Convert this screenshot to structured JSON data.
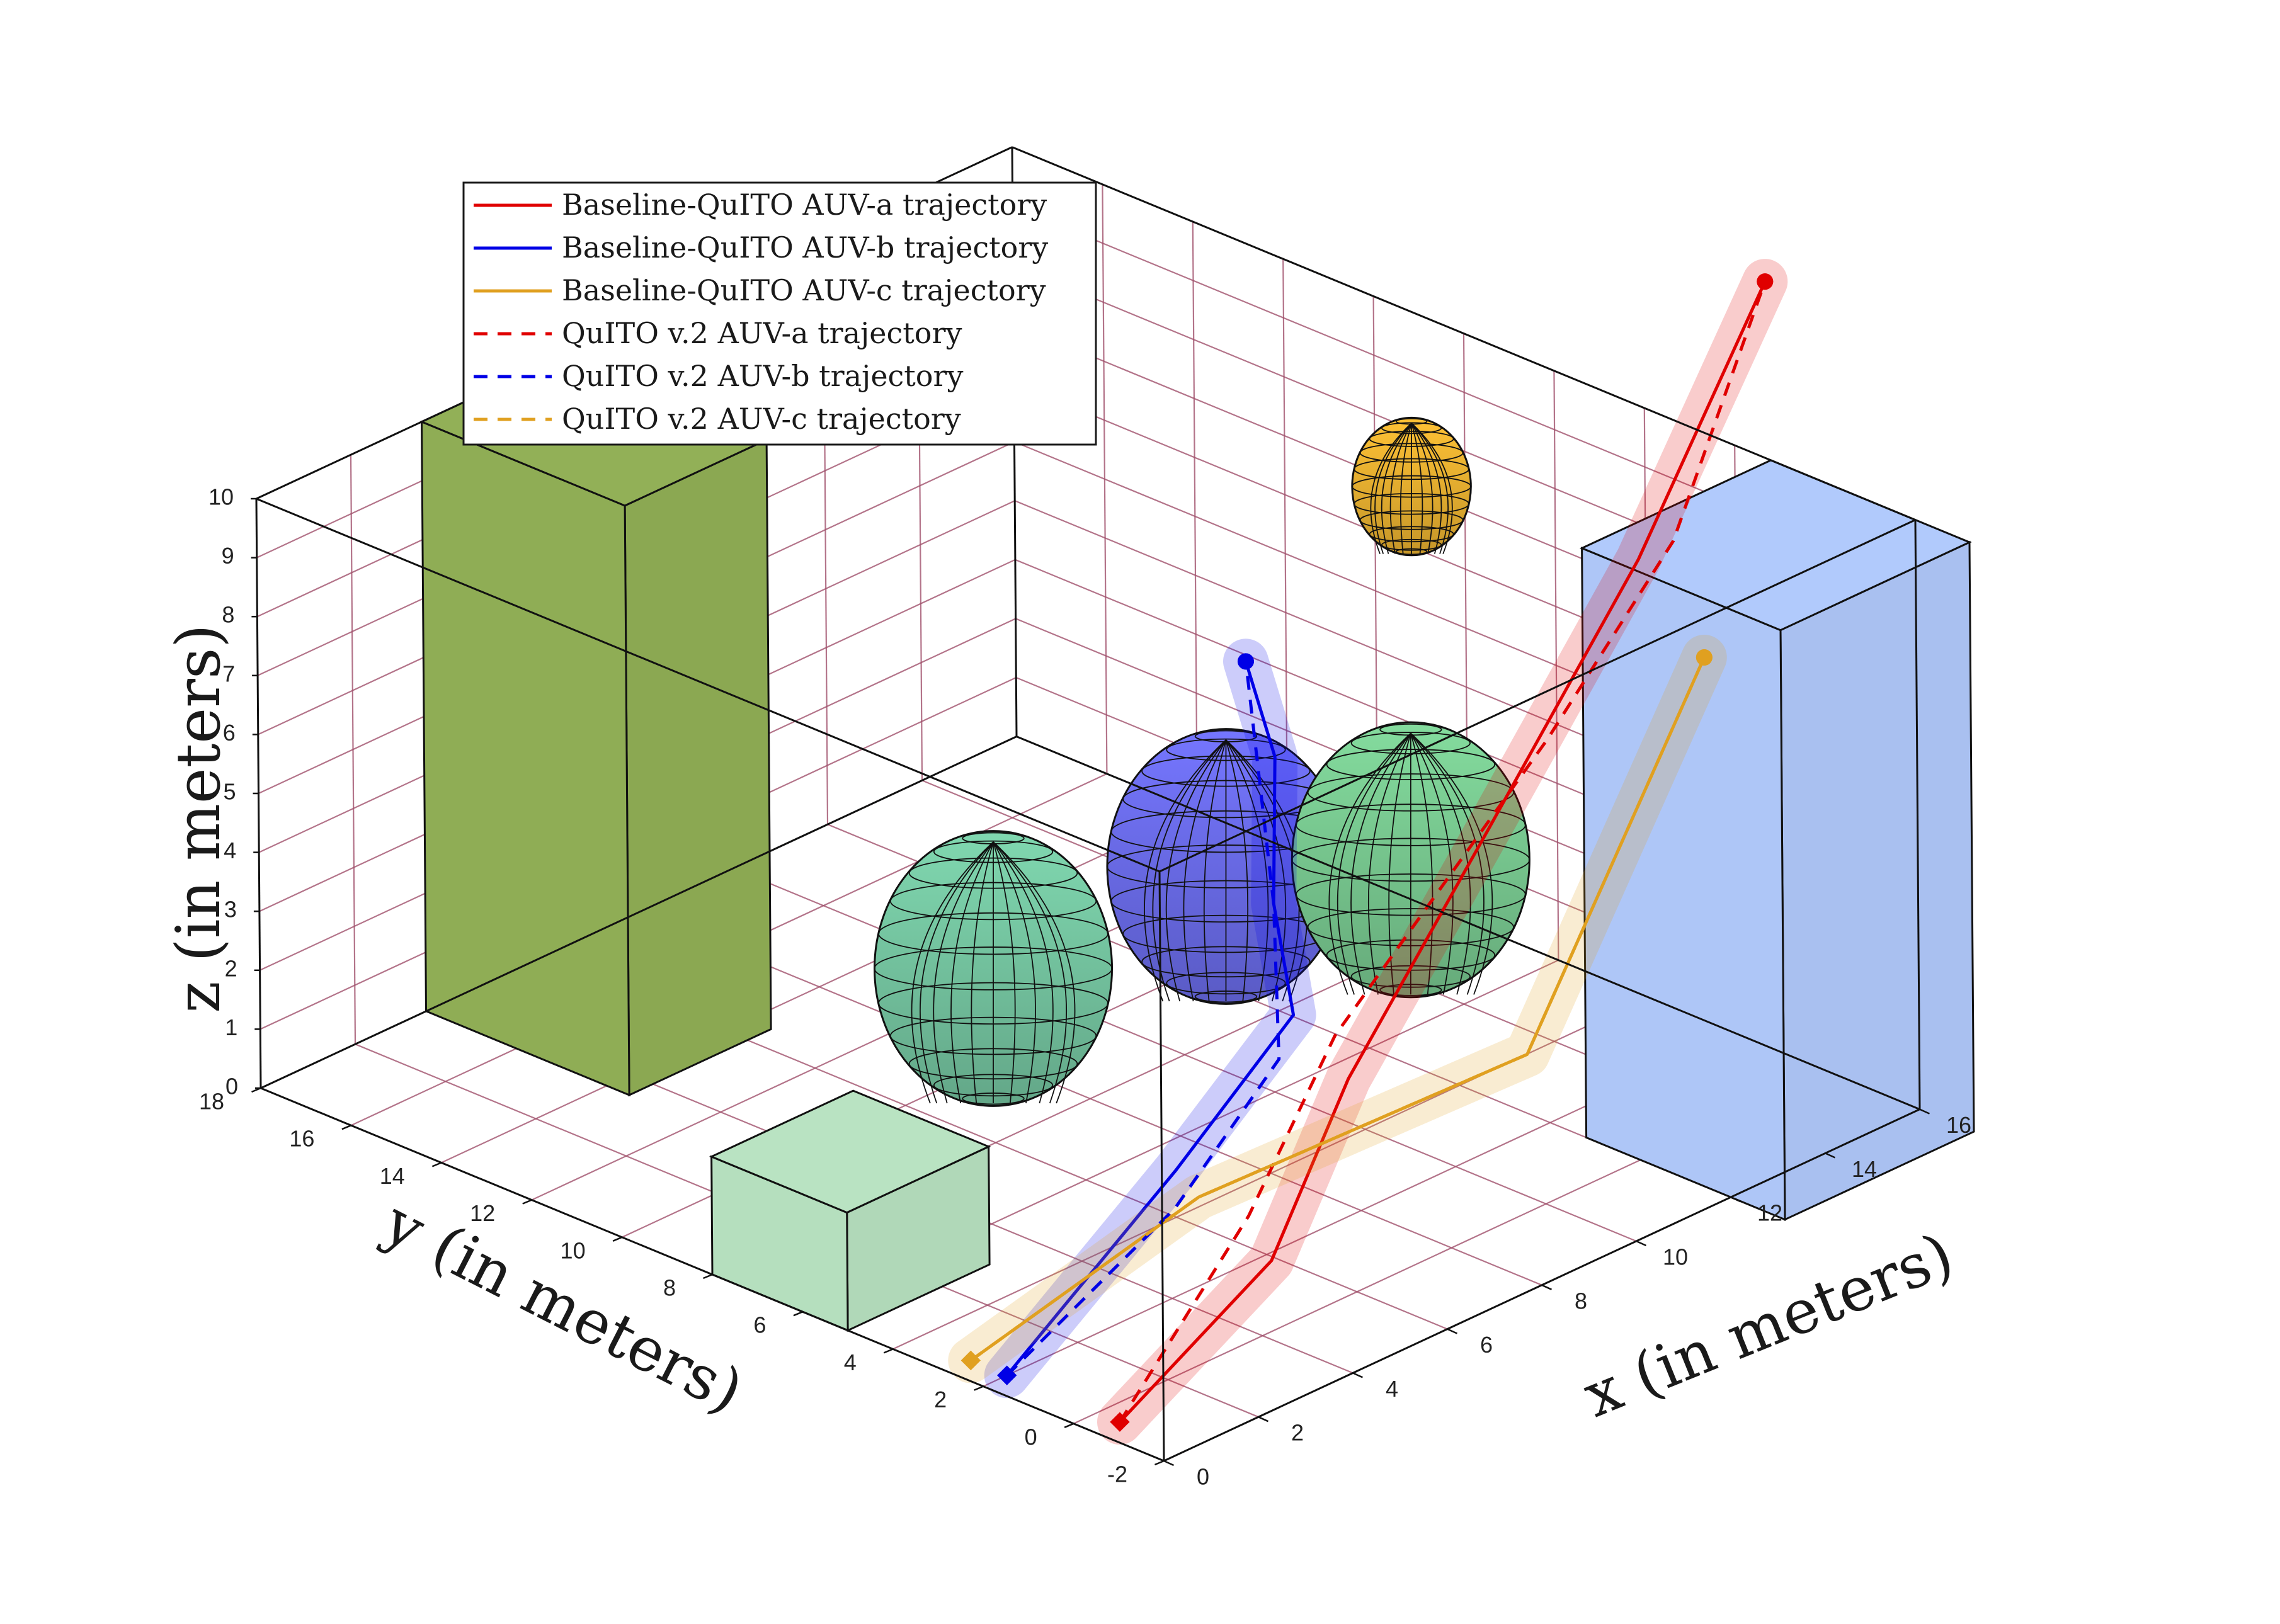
{
  "chart_data": {
    "type": "line3d",
    "title": "",
    "xlabel": "x (in meters)",
    "ylabel": "y (in meters)",
    "zlabel": "z (in meters)",
    "xlim": [
      0,
      16
    ],
    "ylim": [
      -2,
      18
    ],
    "zlim": [
      0,
      10
    ],
    "grid": true,
    "legend_position": "top-left",
    "x_ticks": [
      "0",
      "2",
      "4",
      "6",
      "8",
      "10",
      "12",
      "14",
      "16"
    ],
    "y_ticks": [
      "-2",
      "0",
      "2",
      "4",
      "6",
      "8",
      "10",
      "12",
      "14",
      "16",
      "18"
    ],
    "z_ticks": [
      "0",
      "1",
      "2",
      "3",
      "4",
      "5",
      "6",
      "7",
      "8",
      "9",
      "10"
    ],
    "series": [
      {
        "name": "Baseline-QuITO AUV-a trajectory",
        "color": "#e00000",
        "style": "solid",
        "points": [
          [
            0.5,
            -0.5,
            0.0
          ],
          [
            4.2,
            0.0,
            1.2
          ],
          [
            6.8,
            1.0,
            3.0
          ],
          [
            10.0,
            1.2,
            6.0
          ],
          [
            13.0,
            1.0,
            9.5
          ],
          [
            16.0,
            1.3,
            13.0
          ]
        ]
      },
      {
        "name": "Baseline-QuITO AUV-b trajectory",
        "color": "#0000e6",
        "style": "solid",
        "points": [
          [
            0.5,
            2.0,
            0.0
          ],
          [
            6.0,
            4.0,
            0.8
          ],
          [
            8.5,
            4.0,
            2.5
          ],
          [
            10.0,
            6.0,
            3.2
          ],
          [
            11.0,
            7.0,
            5.0
          ],
          [
            12.3,
            9.0,
            5.5
          ]
        ]
      },
      {
        "name": "Baseline-QuITO AUV-c trajectory",
        "color": "#e0a020",
        "style": "solid",
        "points": [
          [
            0.5,
            2.8,
            0.0
          ],
          [
            6.0,
            3.5,
            0.5
          ],
          [
            12.0,
            2.5,
            1.0
          ],
          [
            12.0,
            1.0,
            4.0
          ],
          [
            12.0,
            -1.5,
            9.0
          ]
        ]
      },
      {
        "name": "QuITO v.2 AUV-a trajectory",
        "color": "#e00000",
        "style": "dashed",
        "points": [
          [
            0.5,
            -0.5,
            0.0
          ],
          [
            4.2,
            0.5,
            1.8
          ],
          [
            7.0,
            1.5,
            3.5
          ],
          [
            12.0,
            2.0,
            6.5
          ],
          [
            14.5,
            1.8,
            9.0
          ],
          [
            16.0,
            1.3,
            13.0
          ]
        ]
      },
      {
        "name": "QuITO v.2 AUV-b trajectory",
        "color": "#0000e6",
        "style": "dashed",
        "points": [
          [
            0.5,
            2.0,
            0.0
          ],
          [
            5.5,
            3.5,
            0.5
          ],
          [
            8.0,
            3.8,
            2.0
          ],
          [
            10.0,
            6.0,
            3.2
          ],
          [
            12.3,
            9.0,
            5.5
          ]
        ]
      },
      {
        "name": "QuITO v.2 AUV-c trajectory",
        "color": "#e0a020",
        "style": "dashed",
        "points": [
          [
            0.5,
            2.8,
            0.0
          ],
          [
            6.0,
            3.5,
            0.5
          ],
          [
            12.0,
            2.5,
            1.0
          ],
          [
            12.0,
            1.0,
            4.0
          ],
          [
            12.0,
            -1.5,
            9.0
          ]
        ]
      }
    ],
    "obstacles": [
      {
        "kind": "box",
        "label": "green tower",
        "color": "#8fad55",
        "x": [
          3.5,
          6.5
        ],
        "y": [
          13.5,
          18.0
        ],
        "z": [
          0,
          10
        ]
      },
      {
        "kind": "box",
        "label": "blue tower",
        "color": "#aec6f7",
        "x": [
          12.0,
          16.0
        ],
        "y": [
          -3.2,
          1.2
        ],
        "z": [
          0,
          10
        ]
      },
      {
        "kind": "box",
        "label": "small cube",
        "color": "#b5dfbe",
        "x": [
          0.0,
          3.0
        ],
        "y": [
          5.0,
          8.0
        ],
        "z": [
          0,
          2
        ]
      },
      {
        "kind": "sphere",
        "label": "left sphere",
        "color": "#74c4a0",
        "center": [
          5.5,
          7.5,
          3.3
        ],
        "radius": 2.6
      },
      {
        "kind": "sphere",
        "label": "middle sphere",
        "color": "#6a6be8",
        "center": [
          9.0,
          6.0,
          4.2
        ],
        "radius": 2.6
      },
      {
        "kind": "sphere",
        "label": "right sphere",
        "color": "#78c890",
        "center": [
          11.0,
          4.0,
          4.2
        ],
        "radius": 2.6
      },
      {
        "kind": "sphere",
        "label": "top sphere",
        "color": "#e8b030",
        "center": [
          12.5,
          5.5,
          9.5
        ],
        "radius": 1.3
      }
    ]
  }
}
